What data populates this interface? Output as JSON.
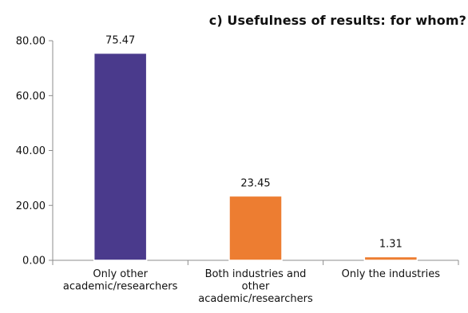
{
  "chart_data": {
    "type": "bar",
    "title": "c) Usefulness of results: for whom?",
    "categories": [
      [
        "Only other",
        "academic/researchers"
      ],
      [
        "Both industries and",
        "other",
        "academic/researchers"
      ],
      [
        "Only the industries"
      ]
    ],
    "values": [
      75.47,
      23.45,
      1.31
    ],
    "data_labels": [
      "75.47",
      "23.45",
      "1.31"
    ],
    "bar_colors": [
      "#4a3a8c",
      "#ed7d31",
      "#ed7d31"
    ],
    "ylim": [
      0,
      80
    ],
    "y_ticks": [
      0,
      20,
      40,
      60,
      80
    ],
    "y_tick_labels": [
      "0.00",
      "20.00",
      "40.00",
      "60.00",
      "80.00"
    ],
    "xlabel": "",
    "ylabel": "",
    "grid": false,
    "legend": "none"
  }
}
